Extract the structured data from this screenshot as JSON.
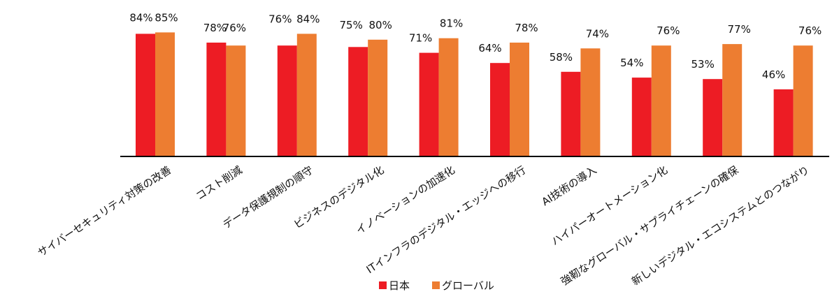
{
  "chart_data": {
    "type": "bar",
    "categories": [
      "サイバーセキュリティ対策の改善",
      "コスト削減",
      "データ保護規制の順守",
      "ビジネスのデジタル化",
      "イノベーションの加速化",
      "ITインフラのデジタル・エッジへの移行",
      "AI技術の導入",
      "ハイパーオートメーション化",
      "強靭なグローバル・サプライチェーンの確保",
      "新しいデジタル・エコシステムとのつながり"
    ],
    "series": [
      {
        "name": "日本",
        "color": "#ed1c24",
        "values": [
          84,
          78,
          76,
          75,
          71,
          64,
          58,
          54,
          53,
          46
        ]
      },
      {
        "name": "グローバル",
        "color": "#ed7d31",
        "values": [
          85,
          76,
          84,
          80,
          81,
          78,
          74,
          76,
          77,
          76
        ]
      }
    ],
    "value_suffix": "%",
    "ylim": [
      0,
      100
    ],
    "grid": false,
    "legend": "bottom"
  }
}
